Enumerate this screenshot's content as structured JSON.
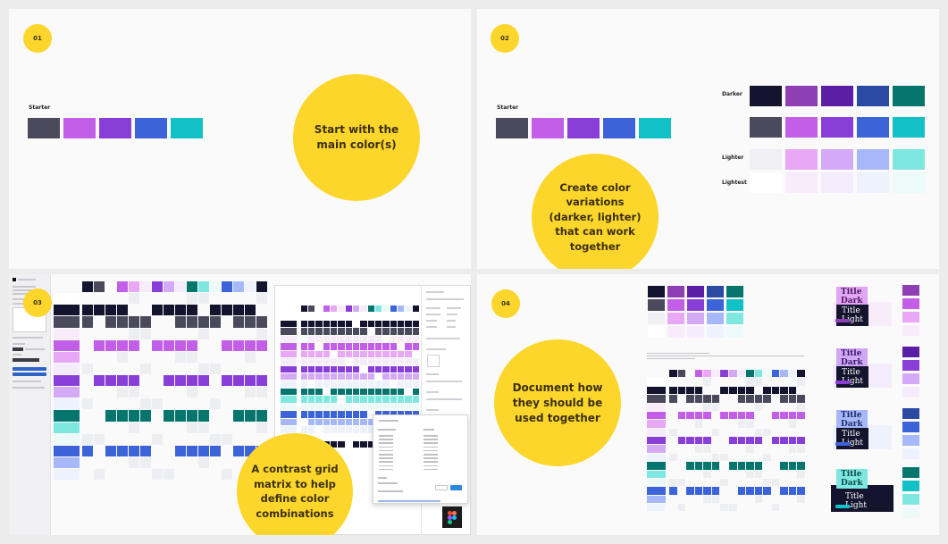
{
  "colors": {
    "background": "#ececec",
    "panel": "#fafafa",
    "accent_yellow": "#fcd62b",
    "bubble_text": "#3b2f12"
  },
  "palette": {
    "darker": [
      "#14142e",
      "#8e3fb4",
      "#5b1fa6",
      "#2a4aa4",
      "#06756e"
    ],
    "starter": [
      "#4a4a5c",
      "#c25ee8",
      "#8a3ed8",
      "#3d63d8",
      "#11c1c5"
    ],
    "lighter": [
      "#f0f0f4",
      "#e8a8f6",
      "#d4aaf6",
      "#a7b8f8",
      "#7ee8e0"
    ],
    "lightest": [
      "#ffffff",
      "#f8ecfb",
      "#f4ecfc",
      "#eef2fd",
      "#ecfafa"
    ]
  },
  "panels": [
    {
      "step": "01",
      "starter_label": "Starter",
      "bubble": "Start with the main color(s)"
    },
    {
      "step": "02",
      "starter_label": "Starter",
      "row_labels": {
        "darker": "Darker",
        "lighter": "Lighter",
        "lightest": "Lightest"
      },
      "bubble": "Create color variations (darker, lighter) that can work together"
    },
    {
      "step": "03",
      "bubble": "A contrast grid matrix to help define color combinations",
      "app_icon": "figma-icon"
    },
    {
      "step": "04",
      "bubble": "Document how they should be used together",
      "title_cards": [
        {
          "dark_label": "Title Dark",
          "light_label": "Title Light",
          "dark_bg": "#e3a6f4",
          "dark_fg": "#4a1a63",
          "card_bg": "#f8ecfb",
          "chip": "#8e3fb4",
          "stack": [
            "#8e3fb4",
            "#c25ee8",
            "#e8a8f6",
            "#f8ecfb"
          ]
        },
        {
          "dark_label": "Title Dark",
          "light_label": "Title Light",
          "dark_bg": "#d0a8f4",
          "dark_fg": "#3a1770",
          "card_bg": "#f4ecfc",
          "chip": "#8a3ed8",
          "stack": [
            "#5b1fa6",
            "#8a3ed8",
            "#d4aaf6",
            "#f4ecfc"
          ]
        },
        {
          "dark_label": "Title Dark",
          "light_label": "Title Light",
          "dark_bg": "#a7b8f8",
          "dark_fg": "#1c2a6e",
          "card_bg": "#eef2fd",
          "chip": "#3d63d8",
          "stack": [
            "#2a4aa4",
            "#3d63d8",
            "#a7b8f8",
            "#eef2fd"
          ]
        },
        {
          "dark_label": "Title Dark",
          "light_label": "Title Light",
          "dark_bg": "#7ee8e0",
          "dark_fg": "#0b4a48",
          "card_bg": "#14142e",
          "chip": "#11c1c5",
          "stack": [
            "#06756e",
            "#11c1c5",
            "#7ee8e0",
            "#ecfafa"
          ]
        }
      ]
    }
  ]
}
